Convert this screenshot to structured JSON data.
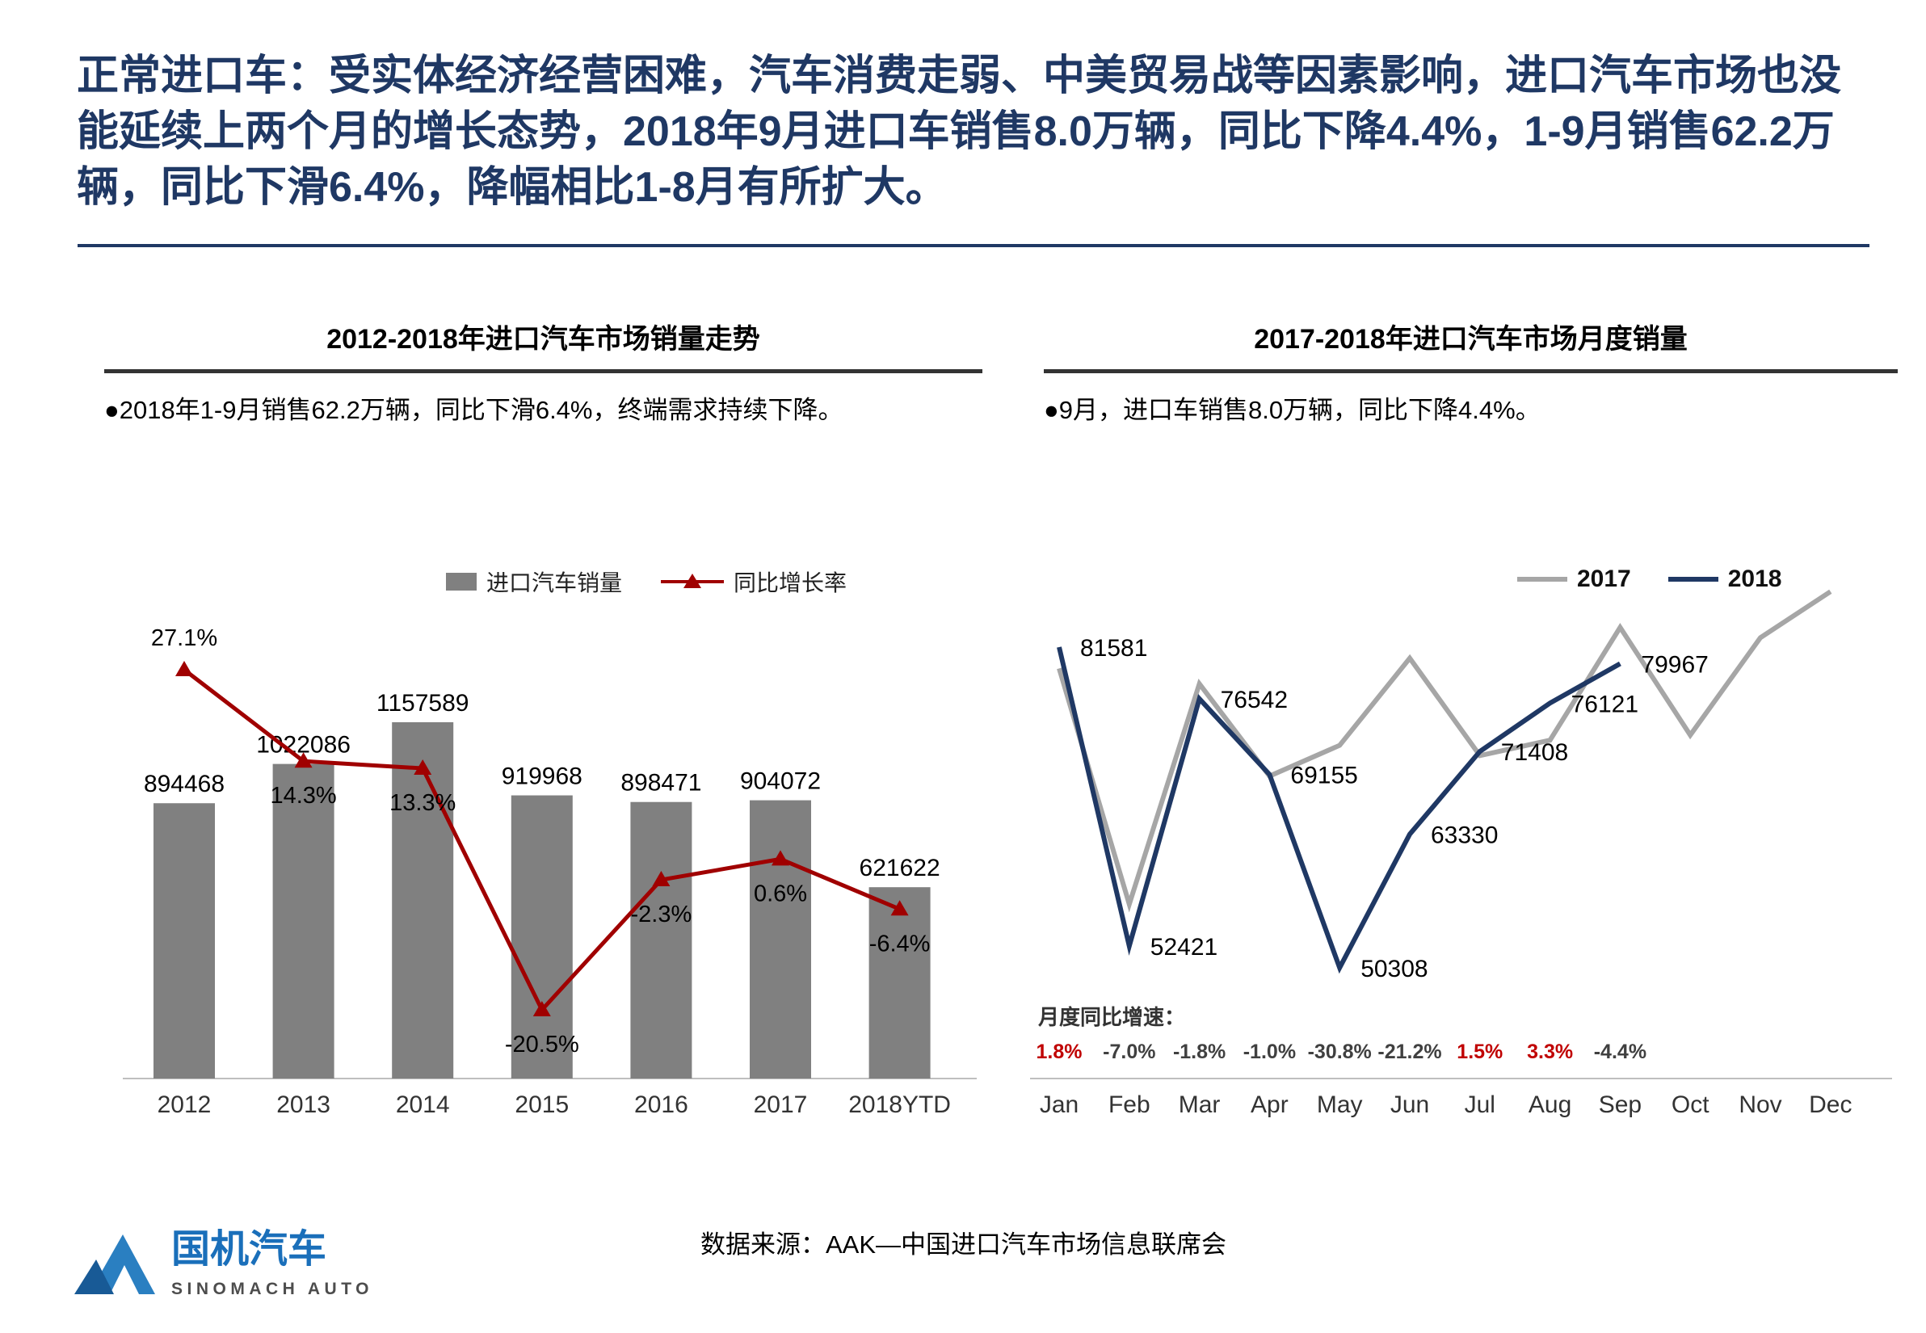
{
  "header": {
    "title": "正常进口车：受实体经济经营困难，汽车消费走弱、中美贸易战等因素影响，进口汽车市场也没能延续上两个月的增长态势，2018年9月进口车销售8.0万辆，同比下降4.4%，1-9月销售62.2万辆，同比下滑6.4%，降幅相比1-8月有所扩大。"
  },
  "left_panel": {
    "bullet": "●2018年1-9月销售62.2万辆，同比下滑6.4%，终端需求持续下降。"
  },
  "right_panel": {
    "bullet": "●9月，进口车销售8.0万辆，同比下降4.4%。"
  },
  "footer": {
    "source": "数据来源：AAK—中国进口汽车市场信息联席会",
    "logo_name": "国机汽车",
    "logo_sub": "SINOMACH AUTO"
  },
  "colors": {
    "title_navy": "#1f3864",
    "bar_gray": "#808080",
    "growth_line_red": "#a00000",
    "line_2017_gray": "#a6a6a6",
    "line_2018_blue": "#1f3864",
    "positive_red": "#c00000",
    "negative_dark": "#404040",
    "logo_blue": "#2373b9"
  },
  "chart_data": [
    {
      "type": "bar",
      "title": "2012-2018年进口汽车市场销量走势",
      "categories": [
        "2012",
        "2013",
        "2014",
        "2015",
        "2016",
        "2017",
        "2018YTD"
      ],
      "series": [
        {
          "name": "进口汽车销量",
          "type": "bar",
          "values": [
            894468,
            1022086,
            1157589,
            919968,
            898471,
            904072,
            621622
          ]
        },
        {
          "name": "同比增长率",
          "type": "line",
          "unit": "%",
          "values": [
            27.1,
            14.3,
            13.3,
            -20.5,
            -2.3,
            0.6,
            -6.4
          ]
        }
      ],
      "value_labels": [
        "894468",
        "1022086",
        "1157589",
        "919968",
        "898471",
        "904072",
        "621622"
      ],
      "pct_labels": [
        "27.1%",
        "14.3%",
        "13.3%",
        "-20.5%",
        "-2.3%",
        "0.6%",
        "-6.4%"
      ],
      "ylim_bars": [
        0,
        1250000
      ],
      "ylim_pct": [
        -25,
        30
      ],
      "legend_position": "top",
      "grid": false
    },
    {
      "type": "line",
      "title": "2017-2018年进口汽车市场月度销量",
      "categories": [
        "Jan",
        "Feb",
        "Mar",
        "Apr",
        "May",
        "Jun",
        "Jul",
        "Aug",
        "Sep",
        "Oct",
        "Nov",
        "Dec"
      ],
      "series": [
        {
          "name": "2017",
          "values": [
            79500,
            56500,
            78000,
            69000,
            72000,
            80500,
            71000,
            72500,
            83500,
            73000,
            82500,
            87000
          ],
          "note": "values estimated from line positions (no data labels shown)"
        },
        {
          "name": "2018",
          "values": [
            81581,
            52421,
            76542,
            69155,
            50308,
            63330,
            71408,
            76121,
            79967
          ]
        }
      ],
      "point_labels_2018": [
        "81581",
        "52421",
        "76542",
        "69155",
        "50308",
        "63330",
        "71408",
        "76121",
        "79967"
      ],
      "growth_caption": "月度同比增速：",
      "growth_values": [
        "1.8%",
        "-7.0%",
        "-1.8%",
        "-1.0%",
        "-30.8%",
        "-21.2%",
        "1.5%",
        "3.3%",
        "-4.4%"
      ],
      "growth_positive": [
        true,
        false,
        false,
        false,
        false,
        false,
        true,
        true,
        false
      ],
      "ylim": [
        45000,
        90000
      ],
      "legend_position": "top-right",
      "grid": false
    }
  ]
}
